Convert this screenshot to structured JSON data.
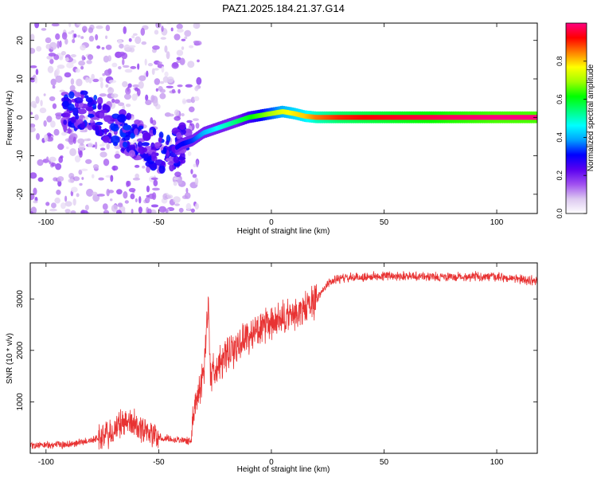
{
  "title": "PAZ1.2025.184.21.37.G14",
  "chart_data": [
    {
      "type": "heatmap",
      "xlabel": "Height of straight line (km)",
      "ylabel": "Frequency (Hz)",
      "xlim": [
        -107,
        118
      ],
      "ylim": [
        -25,
        24.5
      ],
      "xticks": [
        -100,
        -50,
        0,
        50,
        100
      ],
      "yticks": [
        -20,
        -10,
        0,
        10,
        20
      ],
      "colorbar": {
        "label": "Normalized spectral amplitude",
        "range": [
          0,
          1
        ],
        "ticks": [
          "0.0",
          "0.2",
          "0.4",
          "0.6",
          "0.8"
        ],
        "colors": [
          "#ffffff",
          "#dcc8f0",
          "#a050f0",
          "#5a00f0",
          "#0000ff",
          "#00a0ff",
          "#00ffff",
          "#00ff80",
          "#00ff00",
          "#a0ff00",
          "#ffff00",
          "#ff8000",
          "#ff0000",
          "#ff0080"
        ]
      },
      "ridge": {
        "x": [
          -82,
          -75,
          -68,
          -62,
          -56,
          -50,
          -45,
          -40,
          -35,
          -30,
          -25,
          -20,
          -15,
          -10,
          -5,
          0,
          5,
          10,
          15,
          20,
          30,
          40,
          60,
          80,
          100,
          118
        ],
        "freq": [
          2,
          -1,
          -3,
          -5,
          -7,
          -9,
          -9,
          -7,
          -6,
          -4,
          -3,
          -2,
          -1,
          0,
          0.5,
          1,
          1.5,
          1,
          0.3,
          0,
          0,
          0,
          0,
          0,
          0,
          0
        ],
        "amplitude": [
          0.3,
          0.3,
          0.3,
          0.28,
          0.27,
          0.27,
          0.27,
          0.3,
          0.33,
          0.4,
          0.45,
          0.5,
          0.55,
          0.6,
          0.65,
          0.7,
          0.75,
          0.78,
          0.8,
          0.85,
          0.9,
          0.92,
          0.95,
          0.98,
          1.0,
          1.0
        ]
      }
    },
    {
      "type": "line",
      "xlabel": "Height of straight line (km)",
      "ylabel": "SNR (10 * v/v)",
      "xlim": [
        -107,
        118
      ],
      "ylim": [
        0,
        3700
      ],
      "xticks": [
        -100,
        -50,
        0,
        50,
        100
      ],
      "yticks": [
        1000,
        2000,
        3000
      ],
      "color": "#e83232",
      "series": [
        {
          "x": [
            -107,
            -100,
            -90,
            -80,
            -70,
            -65,
            -60,
            -55,
            -50,
            -45,
            -40,
            -36,
            -34,
            -32,
            -30,
            -28,
            -27,
            -25,
            -20,
            -15,
            -10,
            -5,
            0,
            5,
            10,
            15,
            20,
            25,
            30,
            40,
            50,
            60,
            70,
            80,
            90,
            100,
            110,
            118
          ],
          "y": [
            150,
            160,
            170,
            250,
            400,
            650,
            550,
            450,
            300,
            280,
            260,
            230,
            900,
            1300,
            1500,
            3000,
            1500,
            1700,
            1850,
            2100,
            2300,
            2400,
            2500,
            2600,
            2700,
            2800,
            3000,
            3300,
            3400,
            3420,
            3450,
            3450,
            3430,
            3420,
            3440,
            3420,
            3380,
            3350
          ]
        }
      ]
    }
  ]
}
